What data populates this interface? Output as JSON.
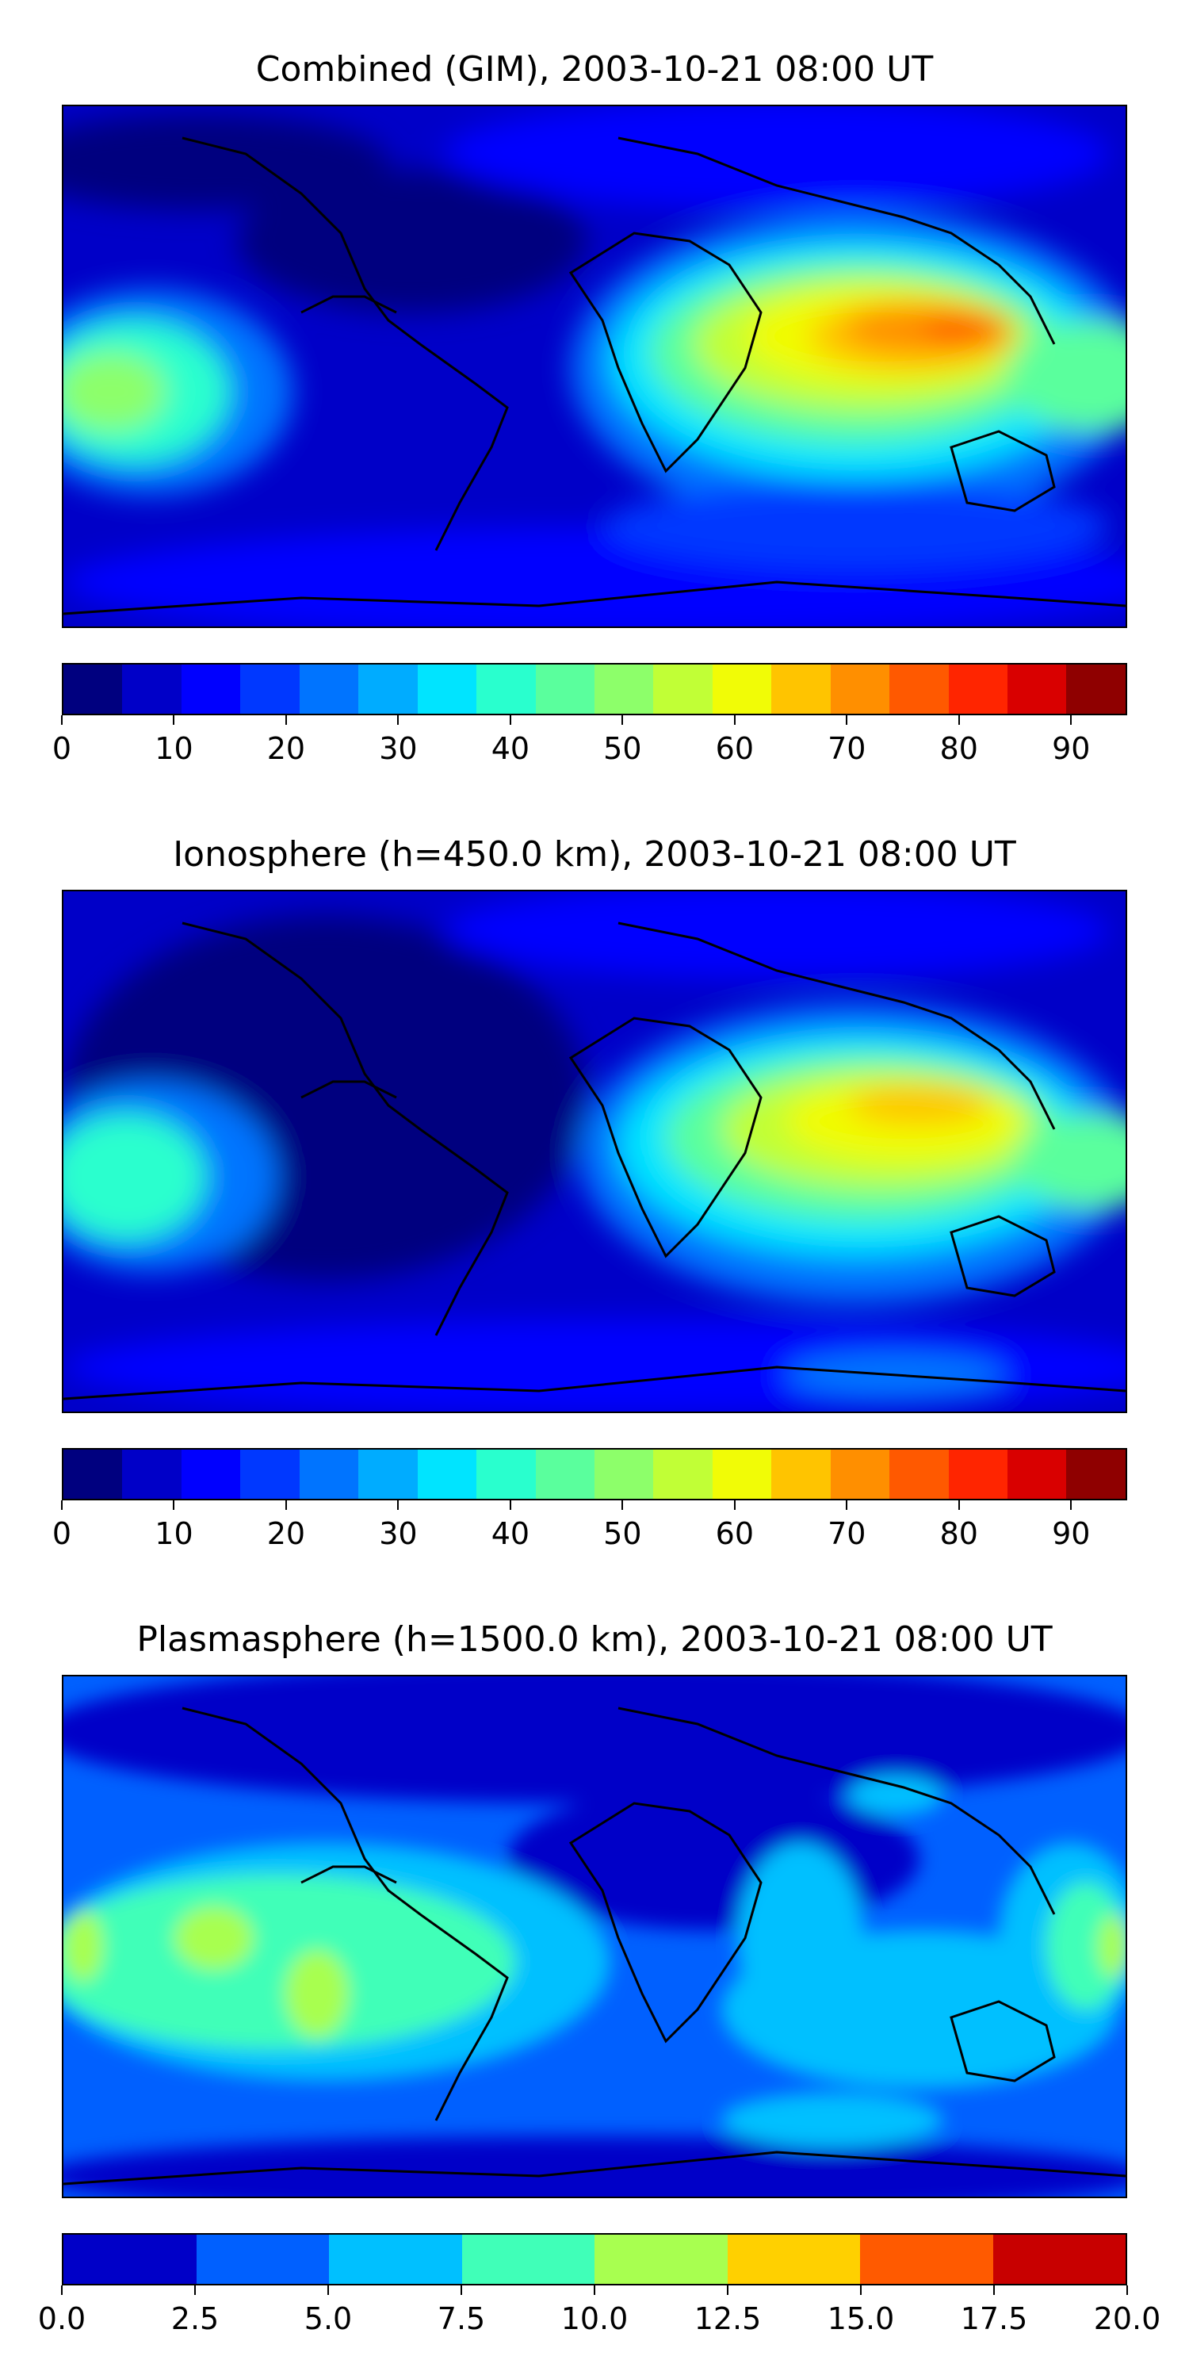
{
  "panels": [
    {
      "title": "Combined (GIM), 2003-10-21 08:00 UT",
      "map_id": "combined",
      "colorbar": {
        "min": 0,
        "max": 95,
        "colors": [
          "#00007f",
          "#0000c8",
          "#0000ff",
          "#0038ff",
          "#0074ff",
          "#00acff",
          "#00e4ff",
          "#29ffce",
          "#5aff9d",
          "#8dff6a",
          "#c1ff36",
          "#f1fc06",
          "#ffc400",
          "#ff8f00",
          "#ff5900",
          "#ff2500",
          "#d90000",
          "#8f0000"
        ],
        "ticks": [
          "0",
          "10",
          "20",
          "30",
          "40",
          "50",
          "60",
          "70",
          "80",
          "90"
        ],
        "tick_values": [
          0,
          10,
          20,
          30,
          40,
          50,
          60,
          70,
          80,
          90
        ]
      }
    },
    {
      "title": "Ionosphere  (h=450.0 km), 2003-10-21 08:00 UT",
      "map_id": "iono",
      "colorbar": {
        "min": 0,
        "max": 95,
        "colors": [
          "#00007f",
          "#0000c8",
          "#0000ff",
          "#0038ff",
          "#0074ff",
          "#00acff",
          "#00e4ff",
          "#29ffce",
          "#5aff9d",
          "#8dff6a",
          "#c1ff36",
          "#f1fc06",
          "#ffc400",
          "#ff8f00",
          "#ff5900",
          "#ff2500",
          "#d90000",
          "#8f0000"
        ],
        "ticks": [
          "0",
          "10",
          "20",
          "30",
          "40",
          "50",
          "60",
          "70",
          "80",
          "90"
        ],
        "tick_values": [
          0,
          10,
          20,
          30,
          40,
          50,
          60,
          70,
          80,
          90
        ]
      }
    },
    {
      "title": "Plasmasphere (h=1500.0 km), 2003-10-21 08:00 UT",
      "map_id": "plasma",
      "colorbar": {
        "min": 0,
        "max": 20,
        "colors": [
          "#0000c8",
          "#0060ff",
          "#00c0ff",
          "#40ffb8",
          "#a8ff50",
          "#ffd000",
          "#ff5a00",
          "#c80000"
        ],
        "ticks": [
          "0.0",
          "2.5",
          "5.0",
          "7.5",
          "10.0",
          "12.5",
          "15.0",
          "17.5",
          "20.0"
        ],
        "tick_values": [
          0,
          2.5,
          5,
          7.5,
          10,
          12.5,
          15,
          17.5,
          20
        ]
      }
    }
  ]
}
